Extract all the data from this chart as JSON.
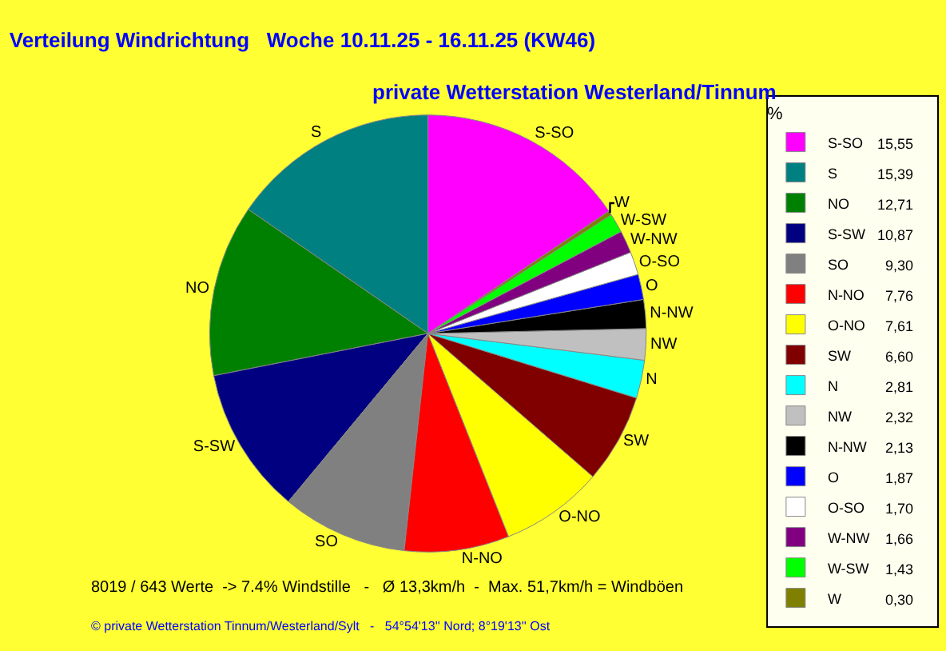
{
  "chart_data": {
    "type": "pie",
    "title": "Verteilung Windrichtung   Woche 10.11.25 - 16.11.25 (KW46)",
    "subtitle": "private Wetterstation Westerland/Tinnum",
    "legend_title": "%",
    "categories": [
      "S-SO",
      "S",
      "NO",
      "S-SW",
      "SO",
      "N-NO",
      "O-NO",
      "SW",
      "N",
      "NW",
      "N-NW",
      "O",
      "O-SO",
      "W-NW",
      "W-SW",
      "W"
    ],
    "values": [
      15.55,
      15.39,
      12.71,
      10.87,
      9.3,
      7.76,
      7.61,
      6.6,
      2.81,
      2.32,
      2.13,
      1.87,
      1.7,
      1.66,
      1.43,
      0.3
    ],
    "value_labels": [
      "15,55",
      "15,39",
      "12,71",
      "10,87",
      "9,30",
      "7,76",
      "7,61",
      "6,60",
      "2,81",
      "2,32",
      "2,13",
      "1,87",
      "1,70",
      "1,66",
      "1,43",
      "0,30"
    ],
    "colors": [
      "#ff00ff",
      "#008080",
      "#008000",
      "#000080",
      "#808080",
      "#ff0000",
      "#ffff00",
      "#800000",
      "#00ffff",
      "#c0c0c0",
      "#000000",
      "#0000ff",
      "#ffffff",
      "#800080",
      "#00ff00",
      "#808000"
    ],
    "legend": "right",
    "annotations": [
      "8019 / 643 Werte  -> 7.4% Windstille   -   Ø 13,3km/h  -  Max. 51,7km/h = Windböen",
      "© private Wetterstation Tinnum/Westerland/Sylt   -   54°54'13'' Nord; 8°19'13'' Ost"
    ]
  }
}
